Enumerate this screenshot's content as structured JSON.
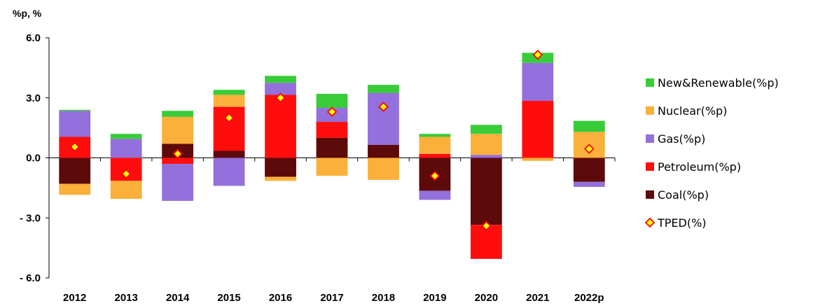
{
  "chart_data": {
    "type": "bar",
    "stacked": true,
    "y_unit_label": "%p, %",
    "ylim": [
      -6.0,
      6.0
    ],
    "yticks": [
      6.0,
      3.0,
      0.0,
      -3.0,
      -6.0
    ],
    "ytick_labels": [
      "6.0",
      "3.0",
      "0.0",
      "- 3.0",
      "- 6.0"
    ],
    "categories": [
      "2012",
      "2013",
      "2014",
      "2015",
      "2016",
      "2017",
      "2018",
      "2019",
      "2020",
      "2021",
      "2022p"
    ],
    "series": [
      {
        "name": "Coal(%p)",
        "color": "#5c0a0a",
        "values": [
          -1.3,
          0.0,
          0.7,
          0.35,
          -0.95,
          1.0,
          0.65,
          -1.65,
          -3.35,
          0.0,
          -1.2
        ]
      },
      {
        "name": "Petroleum(%p)",
        "color": "#ff0d0d",
        "values": [
          1.05,
          -1.15,
          -0.3,
          2.2,
          3.15,
          0.8,
          0.0,
          0.2,
          -1.7,
          2.85,
          0.0
        ]
      },
      {
        "name": "Gas(%p)",
        "color": "#9370db",
        "values": [
          1.3,
          0.95,
          -1.85,
          -1.4,
          0.6,
          0.7,
          2.6,
          -0.45,
          0.15,
          1.9,
          -0.25
        ]
      },
      {
        "name": "Nuclear(%p)",
        "color": "#fbb03b",
        "values": [
          -0.55,
          -0.9,
          1.35,
          0.6,
          -0.2,
          -0.9,
          -1.1,
          0.85,
          1.05,
          -0.15,
          1.3
        ]
      },
      {
        "name": "New&Renewable(%p)",
        "color": "#39cc39",
        "values": [
          0.05,
          0.25,
          0.3,
          0.25,
          0.35,
          0.7,
          0.4,
          0.15,
          0.45,
          0.5,
          0.55
        ]
      }
    ],
    "line_series": {
      "name": "TPED(%)",
      "marker": "diamond",
      "fill": "#ffff00",
      "stroke": "#ff0000",
      "values": [
        0.55,
        -0.8,
        0.2,
        2.0,
        3.0,
        2.3,
        2.55,
        -0.9,
        -3.4,
        5.15,
        0.45
      ]
    },
    "legend": {
      "placement": "right",
      "order": [
        "New&Renewable(%p)",
        "Nuclear(%p)",
        "Gas(%p)",
        "Petroleum(%p)",
        "Coal(%p)",
        "TPED(%)"
      ]
    },
    "grid": false
  }
}
